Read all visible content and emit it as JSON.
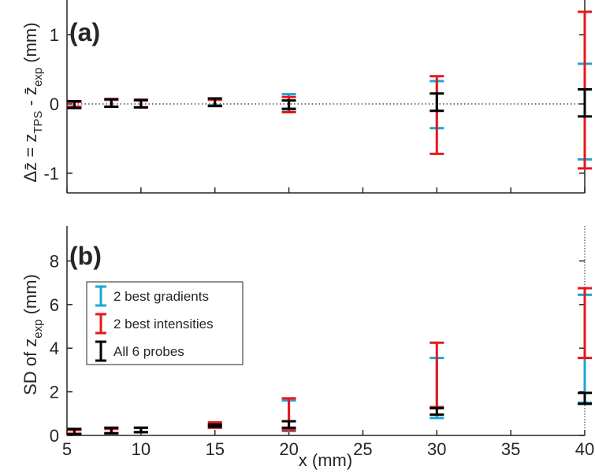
{
  "chart_data": [
    {
      "panel": "(a)",
      "type": "errorbar",
      "ylabel": "Δz̄ = z_TPS - z̄_exp (mm)",
      "ylabel_parts": {
        "a": "Δz̄ = z",
        "sub1": "TPS",
        "b": " - z̄",
        "sub2": "exp",
        "c": " (mm)"
      },
      "xlim": [
        5,
        40
      ],
      "ylim": [
        -1,
        1.5
      ],
      "yticks": [
        -1,
        0,
        1
      ],
      "ytick_labels": [
        "-1",
        "0",
        "1"
      ],
      "reference_line": {
        "y": 0,
        "style": "dotted"
      },
      "series": [
        {
          "name": "2 best gradients",
          "color": "#1aa6d1",
          "x": [
            5.5,
            8,
            10,
            15,
            20,
            30,
            40
          ],
          "low": [
            -0.05,
            -0.04,
            -0.05,
            -0.02,
            -0.08,
            -0.35,
            -0.8
          ],
          "high": [
            0.04,
            0.06,
            0.05,
            0.08,
            0.14,
            0.33,
            0.58
          ]
        },
        {
          "name": "2 best intensities",
          "color": "#e8161b",
          "x": [
            5.5,
            8,
            10,
            15,
            20,
            30,
            40
          ],
          "low": [
            -0.04,
            -0.04,
            -0.05,
            -0.03,
            -0.12,
            -0.72,
            -0.93
          ],
          "high": [
            0.03,
            0.06,
            0.05,
            0.06,
            0.1,
            0.4,
            1.33
          ]
        },
        {
          "name": "All 6 probes",
          "color": "#000000",
          "x": [
            5.5,
            8,
            10,
            15,
            20,
            30,
            40
          ],
          "low": [
            -0.06,
            -0.04,
            -0.05,
            -0.03,
            -0.07,
            -0.1,
            -0.18
          ],
          "high": [
            0.04,
            0.07,
            0.06,
            0.08,
            0.05,
            0.15,
            0.21
          ]
        }
      ]
    },
    {
      "panel": "(b)",
      "type": "errorbar",
      "xlabel": "x (mm)",
      "ylabel": "SD of z_exp (mm)",
      "ylabel_parts": {
        "a": "SD of z",
        "sub1": "exp",
        "c": " (mm)"
      },
      "xlim": [
        5,
        40
      ],
      "ylim": [
        0,
        9
      ],
      "xticks": [
        5,
        10,
        15,
        20,
        25,
        30,
        35,
        40
      ],
      "xtick_labels": [
        "5",
        "10",
        "15",
        "20",
        "25",
        "30",
        "35",
        "40"
      ],
      "yticks": [
        0,
        2,
        4,
        6,
        8
      ],
      "ytick_labels": [
        "0",
        "2",
        "4",
        "6",
        "8"
      ],
      "legend_position": "top-left",
      "series": [
        {
          "name": "2 best gradients",
          "color": "#1aa6d1",
          "x": [
            5.5,
            8,
            10,
            15,
            20,
            30,
            40
          ],
          "low": [
            0.05,
            0.1,
            0.15,
            0.35,
            0.2,
            0.8,
            1.5
          ],
          "high": [
            0.3,
            0.35,
            0.35,
            0.5,
            1.6,
            3.55,
            6.45
          ]
        },
        {
          "name": "2 best intensities",
          "color": "#e8161b",
          "x": [
            5.5,
            8,
            10,
            15,
            20,
            30,
            40
          ],
          "low": [
            0.08,
            0.1,
            0.15,
            0.35,
            0.25,
            1.3,
            3.55
          ],
          "high": [
            0.25,
            0.3,
            0.35,
            0.6,
            1.7,
            4.25,
            6.75
          ]
        },
        {
          "name": "All 6 probes",
          "color": "#000000",
          "x": [
            5.5,
            8,
            10,
            15,
            20,
            30,
            40
          ],
          "low": [
            0.05,
            0.1,
            0.15,
            0.4,
            0.35,
            0.95,
            1.45
          ],
          "high": [
            0.3,
            0.35,
            0.35,
            0.5,
            0.65,
            1.25,
            1.95
          ]
        }
      ],
      "legend": [
        "2 best gradients",
        "2 best intensities",
        "All 6 probes"
      ]
    }
  ]
}
